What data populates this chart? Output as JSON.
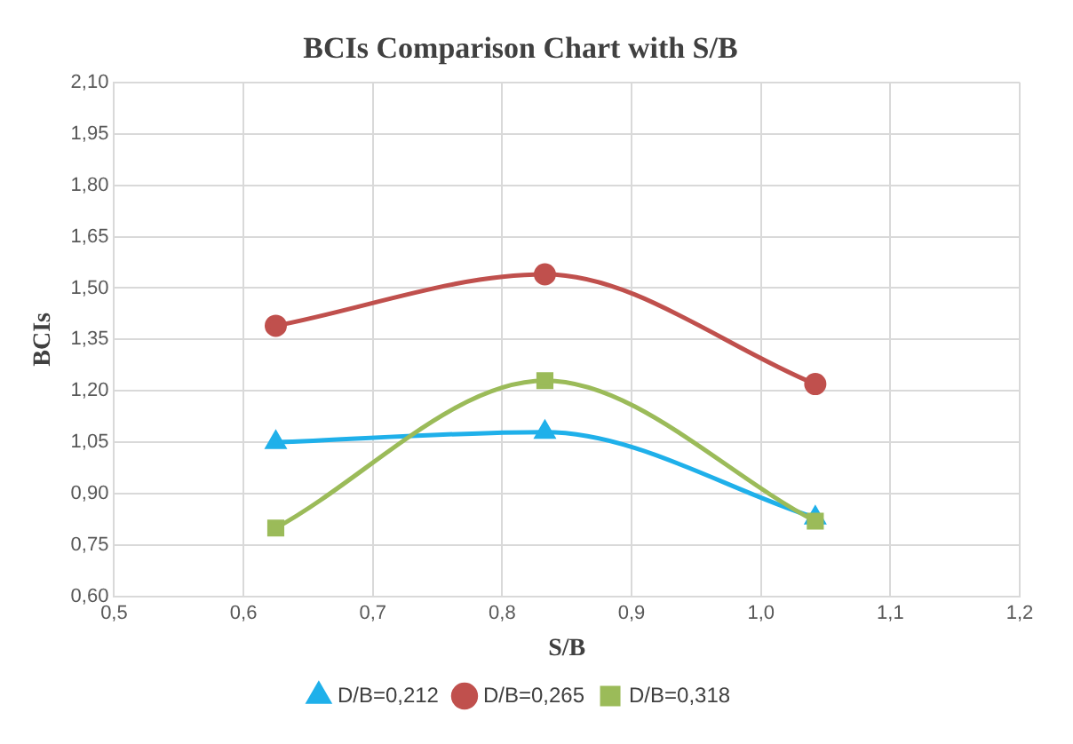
{
  "chart_data": {
    "type": "line",
    "title": "BCIs Comparison Chart with S/B",
    "xlabel": "S/B",
    "ylabel": "BCIs",
    "x": [
      0.625,
      0.833,
      1.042
    ],
    "series": [
      {
        "name": "D/B=0,212",
        "color": "#1fb0ea",
        "marker": "triangle",
        "values": [
          1.05,
          1.08,
          0.83
        ]
      },
      {
        "name": "D/B=0,265",
        "color": "#c0504d",
        "marker": "circle",
        "values": [
          1.39,
          1.54,
          1.22
        ]
      },
      {
        "name": "D/B=0,318",
        "color": "#9bbb59",
        "marker": "square",
        "values": [
          0.8,
          1.23,
          0.82
        ]
      }
    ],
    "xlim": [
      0.5,
      1.2
    ],
    "xticks": [
      {
        "value": 0.5,
        "label": "0,5"
      },
      {
        "value": 0.6,
        "label": "0,6"
      },
      {
        "value": 0.7,
        "label": "0,7"
      },
      {
        "value": 0.8,
        "label": "0,8"
      },
      {
        "value": 0.9,
        "label": "0,9"
      },
      {
        "value": 1.0,
        "label": "1,0"
      },
      {
        "value": 1.1,
        "label": "1,1"
      },
      {
        "value": 1.2,
        "label": "1,2"
      }
    ],
    "ylim": [
      0.6,
      2.1
    ],
    "yticks": [
      {
        "value": 0.6,
        "label": "0,60"
      },
      {
        "value": 0.75,
        "label": "0,75"
      },
      {
        "value": 0.9,
        "label": "0,90"
      },
      {
        "value": 1.05,
        "label": "1,05"
      },
      {
        "value": 1.2,
        "label": "1,20"
      },
      {
        "value": 1.35,
        "label": "1,35"
      },
      {
        "value": 1.5,
        "label": "1,50"
      },
      {
        "value": 1.65,
        "label": "1,65"
      },
      {
        "value": 1.8,
        "label": "1,80"
      },
      {
        "value": 1.95,
        "label": "1,95"
      },
      {
        "value": 2.1,
        "label": "2,10"
      }
    ],
    "grid": true,
    "legend": "bottom",
    "line_style": "solid"
  }
}
